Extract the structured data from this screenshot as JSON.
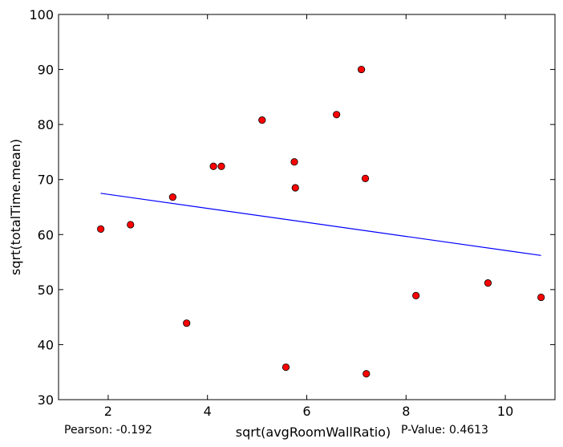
{
  "chart_data": {
    "type": "scatter",
    "xlabel": "sqrt(avgRoomWallRatio)",
    "ylabel": "sqrt(totalTime.mean)",
    "xlim": [
      1,
      11
    ],
    "ylim": [
      30,
      100
    ],
    "xticks": [
      2,
      4,
      6,
      8,
      10
    ],
    "yticks": [
      30,
      40,
      50,
      60,
      70,
      80,
      90,
      100
    ],
    "grid": false,
    "points": [
      {
        "x": 1.85,
        "y": 61.0
      },
      {
        "x": 2.45,
        "y": 61.8
      },
      {
        "x": 3.3,
        "y": 66.8
      },
      {
        "x": 3.58,
        "y": 43.9
      },
      {
        "x": 4.12,
        "y": 72.4
      },
      {
        "x": 4.28,
        "y": 72.4
      },
      {
        "x": 5.1,
        "y": 80.8
      },
      {
        "x": 5.58,
        "y": 35.9
      },
      {
        "x": 5.75,
        "y": 73.2
      },
      {
        "x": 5.77,
        "y": 68.5
      },
      {
        "x": 6.6,
        "y": 81.8
      },
      {
        "x": 7.1,
        "y": 90.0
      },
      {
        "x": 7.18,
        "y": 70.2
      },
      {
        "x": 7.2,
        "y": 34.7
      },
      {
        "x": 8.2,
        "y": 48.9
      },
      {
        "x": 9.65,
        "y": 51.2
      },
      {
        "x": 10.72,
        "y": 48.6
      }
    ],
    "fit_line": {
      "x": [
        1.85,
        10.72
      ],
      "y": [
        67.5,
        56.2
      ]
    },
    "colors": {
      "points": "#ff0000",
      "point_edge": "#000000",
      "line": "#0000ff"
    }
  },
  "stats": {
    "pearson": "Pearson: -0.192",
    "pvalue": "P-Value: 0.4613"
  }
}
